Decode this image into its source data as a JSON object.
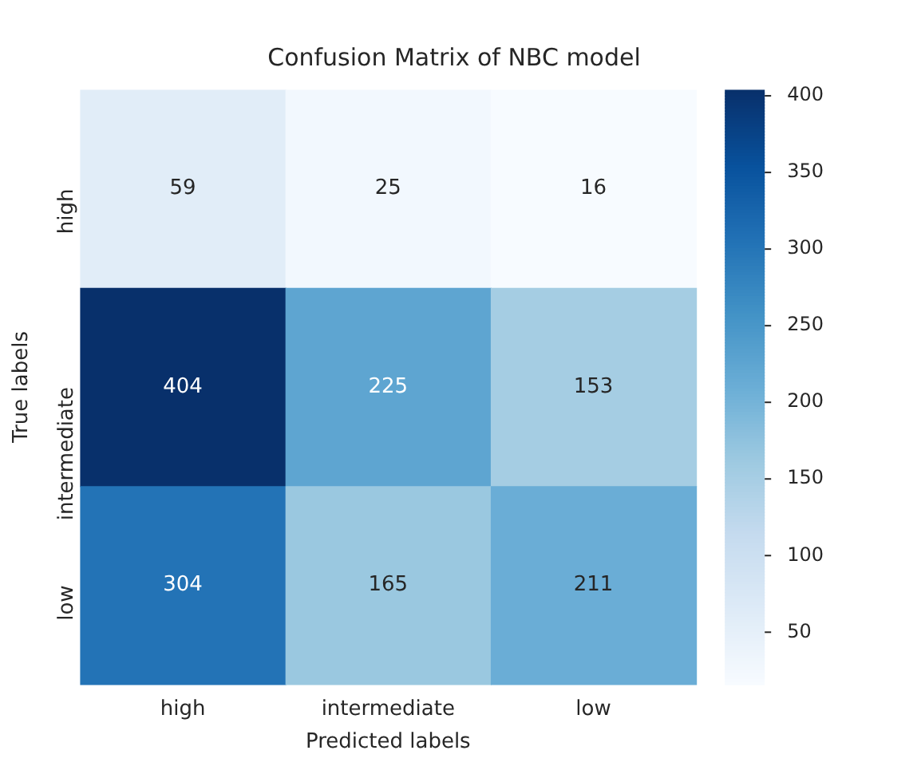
{
  "chart_data": {
    "type": "heatmap",
    "title": "Confusion Matrix of NBC model",
    "xlabel": "Predicted labels",
    "ylabel": "True labels",
    "categories": [
      "high",
      "intermediate",
      "low"
    ],
    "y_categories": [
      "high",
      "intermediate",
      "low"
    ],
    "cells": [
      [
        59,
        25,
        16
      ],
      [
        404,
        225,
        153
      ],
      [
        304,
        165,
        211
      ]
    ],
    "clim": [
      16,
      404
    ],
    "cticks": [
      50,
      100,
      150,
      200,
      250,
      300,
      350,
      400
    ],
    "data_labels": true
  }
}
